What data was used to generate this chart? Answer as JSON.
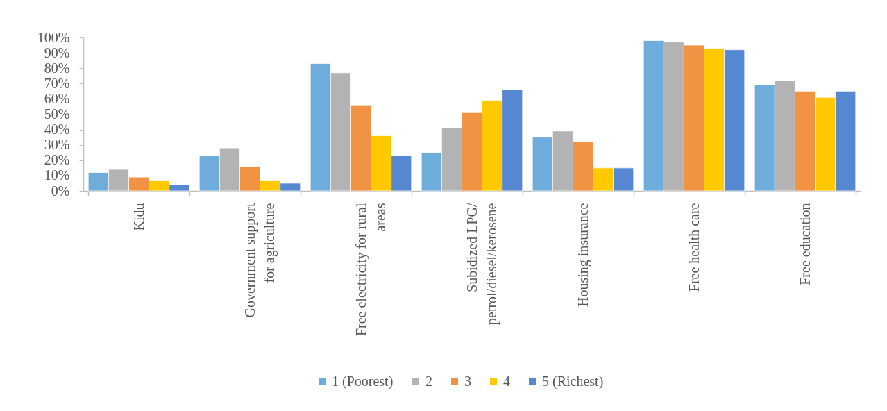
{
  "chart_data": {
    "type": "bar",
    "categories": [
      "Kidu",
      "Government support\nfor agriculture",
      "Free electricity for rural\nareas",
      "Subidized LPG/\npetrol/diesel/kerosene",
      "Housing insurance",
      "Free health care",
      "Free education"
    ],
    "series": [
      {
        "name": "1 (Poorest)",
        "color": "#6eacdc",
        "values": [
          12,
          23,
          83,
          25,
          35,
          98,
          69
        ]
      },
      {
        "name": "2",
        "color": "#b3b3b3",
        "values": [
          14,
          28,
          77,
          41,
          39,
          97,
          72
        ]
      },
      {
        "name": "3",
        "color": "#f29343",
        "values": [
          9,
          16,
          56,
          51,
          32,
          95,
          65
        ]
      },
      {
        "name": "4",
        "color": "#ffc901",
        "values": [
          7,
          7,
          36,
          59,
          15,
          93,
          61
        ]
      },
      {
        "name": "5 (Richest)",
        "color": "#5588d1",
        "values": [
          4,
          5,
          23,
          66,
          15,
          92,
          65
        ]
      }
    ],
    "ylim": [
      0,
      100
    ],
    "yticks": [
      {
        "value": 0,
        "label": "0%"
      },
      {
        "value": 10,
        "label": "10%"
      },
      {
        "value": 20,
        "label": "20%"
      },
      {
        "value": 30,
        "label": "30%"
      },
      {
        "value": 40,
        "label": "40%"
      },
      {
        "value": 50,
        "label": "50%"
      },
      {
        "value": 60,
        "label": "60%"
      },
      {
        "value": 70,
        "label": "70%"
      },
      {
        "value": 80,
        "label": "80%"
      },
      {
        "value": 90,
        "label": "90%"
      },
      {
        "value": 100,
        "label": "100%"
      }
    ],
    "legend": "bottom"
  }
}
